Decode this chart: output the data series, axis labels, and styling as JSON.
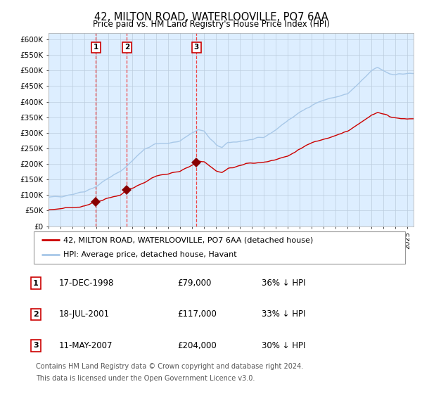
{
  "title": "42, MILTON ROAD, WATERLOOVILLE, PO7 6AA",
  "subtitle": "Price paid vs. HM Land Registry's House Price Index (HPI)",
  "hpi_line_color": "#a8c8e8",
  "price_line_color": "#cc0000",
  "sale_marker_color": "#880000",
  "dashed_line_color": "#ee4444",
  "bg_fill_color": "#ddeeff",
  "grid_color": "#bbccdd",
  "sales": [
    {
      "date_num": 1998.96,
      "price": 79000,
      "label": "1"
    },
    {
      "date_num": 2001.54,
      "price": 117000,
      "label": "2"
    },
    {
      "date_num": 2007.36,
      "price": 204000,
      "label": "3"
    }
  ],
  "sale_labels_info": [
    {
      "num": "1",
      "date": "17-DEC-1998",
      "price": "£79,000",
      "hpi": "36% ↓ HPI"
    },
    {
      "num": "2",
      "date": "18-JUL-2001",
      "price": "£117,000",
      "hpi": "33% ↓ HPI"
    },
    {
      "num": "3",
      "date": "11-MAY-2007",
      "price": "£204,000",
      "hpi": "30% ↓ HPI"
    }
  ],
  "legend_line1": "42, MILTON ROAD, WATERLOOVILLE, PO7 6AA (detached house)",
  "legend_line2": "HPI: Average price, detached house, Havant",
  "footer1": "Contains HM Land Registry data © Crown copyright and database right 2024.",
  "footer2": "This data is licensed under the Open Government Licence v3.0.",
  "ylim": [
    0,
    620000
  ],
  "xlim_start": 1995.0,
  "xlim_end": 2025.5,
  "yticks": [
    0,
    50000,
    100000,
    150000,
    200000,
    250000,
    300000,
    350000,
    400000,
    450000,
    500000,
    550000,
    600000
  ],
  "ytick_labels": [
    "£0",
    "£50K",
    "£100K",
    "£150K",
    "£200K",
    "£250K",
    "£300K",
    "£350K",
    "£400K",
    "£450K",
    "£500K",
    "£550K",
    "£600K"
  ]
}
